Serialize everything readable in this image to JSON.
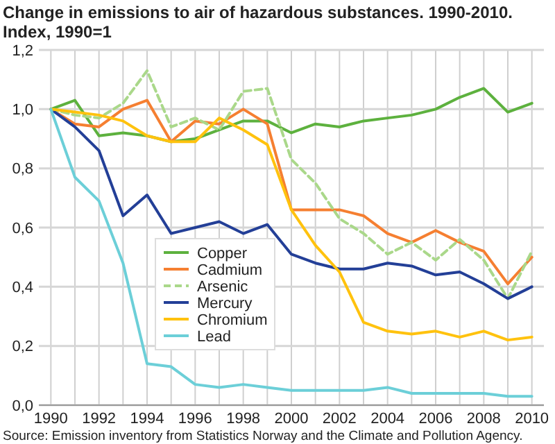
{
  "chart_data": {
    "type": "line",
    "title": "Change in emissions to air of hazardous substances. 1990-2010.",
    "subtitle": "Index, 1990=1",
    "x": [
      1990,
      1991,
      1992,
      1993,
      1994,
      1995,
      1996,
      1997,
      1998,
      1999,
      2000,
      2001,
      2002,
      2003,
      2004,
      2005,
      2006,
      2007,
      2008,
      2009,
      2010
    ],
    "series": [
      {
        "name": "Copper",
        "color": "#5db13e",
        "values": [
          1.0,
          1.03,
          0.91,
          0.92,
          0.91,
          0.89,
          0.9,
          0.93,
          0.96,
          0.96,
          0.92,
          0.95,
          0.94,
          0.96,
          0.97,
          0.98,
          1.0,
          1.04,
          1.07,
          0.99,
          1.02
        ]
      },
      {
        "name": "Cadmium",
        "color": "#f57f31",
        "values": [
          1.0,
          0.95,
          0.94,
          1.0,
          1.03,
          0.89,
          0.96,
          0.95,
          1.0,
          0.95,
          0.66,
          0.66,
          0.66,
          0.64,
          0.58,
          0.55,
          0.59,
          0.55,
          0.52,
          0.41,
          0.5
        ]
      },
      {
        "name": "Arsenic",
        "color": "#aad88a",
        "line_style": "dashed",
        "values": [
          1.0,
          0.98,
          0.97,
          1.02,
          1.13,
          0.94,
          0.97,
          0.93,
          1.06,
          1.07,
          0.83,
          0.75,
          0.63,
          0.58,
          0.51,
          0.55,
          0.49,
          0.56,
          0.49,
          0.36,
          0.52
        ]
      },
      {
        "name": "Mercury",
        "color": "#233f97",
        "values": [
          1.0,
          0.94,
          0.86,
          0.64,
          0.71,
          0.58,
          0.6,
          0.62,
          0.58,
          0.61,
          0.51,
          0.48,
          0.46,
          0.46,
          0.48,
          0.47,
          0.44,
          0.45,
          0.41,
          0.36,
          0.4
        ]
      },
      {
        "name": "Chromium",
        "color": "#ffc20e",
        "values": [
          1.0,
          0.99,
          0.98,
          0.96,
          0.91,
          0.89,
          0.89,
          0.97,
          0.93,
          0.88,
          0.66,
          0.54,
          0.45,
          0.28,
          0.25,
          0.24,
          0.25,
          0.23,
          0.25,
          0.22,
          0.23
        ]
      },
      {
        "name": "Lead",
        "color": "#6ccfd8",
        "values": [
          1.0,
          0.77,
          0.69,
          0.48,
          0.14,
          0.13,
          0.07,
          0.06,
          0.07,
          0.06,
          0.05,
          0.05,
          0.05,
          0.05,
          0.06,
          0.04,
          0.04,
          0.04,
          0.04,
          0.03,
          0.03
        ]
      }
    ],
    "xlim": [
      1989.5,
      2010.5
    ],
    "xticks": [
      1990,
      {
        "value": 1991,
        "label": null
      },
      1992,
      {
        "value": 1993,
        "label": null
      },
      1994,
      {
        "value": 1995,
        "label": null
      },
      1996,
      {
        "value": 1997,
        "label": null
      },
      1998,
      {
        "value": 1999,
        "label": null
      },
      2000,
      {
        "value": 2001,
        "label": null
      },
      2002,
      {
        "value": 2003,
        "label": null
      },
      2004,
      {
        "value": 2005,
        "label": null
      },
      2006,
      {
        "value": 2007,
        "label": null
      },
      2008,
      {
        "value": 2009,
        "label": null
      },
      2010
    ],
    "ylim": [
      0,
      1.2
    ],
    "yticks": [
      {
        "value": 0,
        "label": "0,0"
      },
      {
        "value": 0.2,
        "label": "0,2"
      },
      {
        "value": 0.4,
        "label": "0,4"
      },
      {
        "value": 0.6,
        "label": "0,6"
      },
      {
        "value": 0.8,
        "label": "0,8"
      },
      {
        "value": 1,
        "label": "1,0"
      },
      {
        "value": 1.2,
        "label": "1,2"
      }
    ],
    "grid": true,
    "legend": "bottom left",
    "marker": "none",
    "line_style": "solid",
    "annotations": [
      "Source: Emission inventory from Statistics Norway and the Climate and Pollution Agency."
    ]
  }
}
